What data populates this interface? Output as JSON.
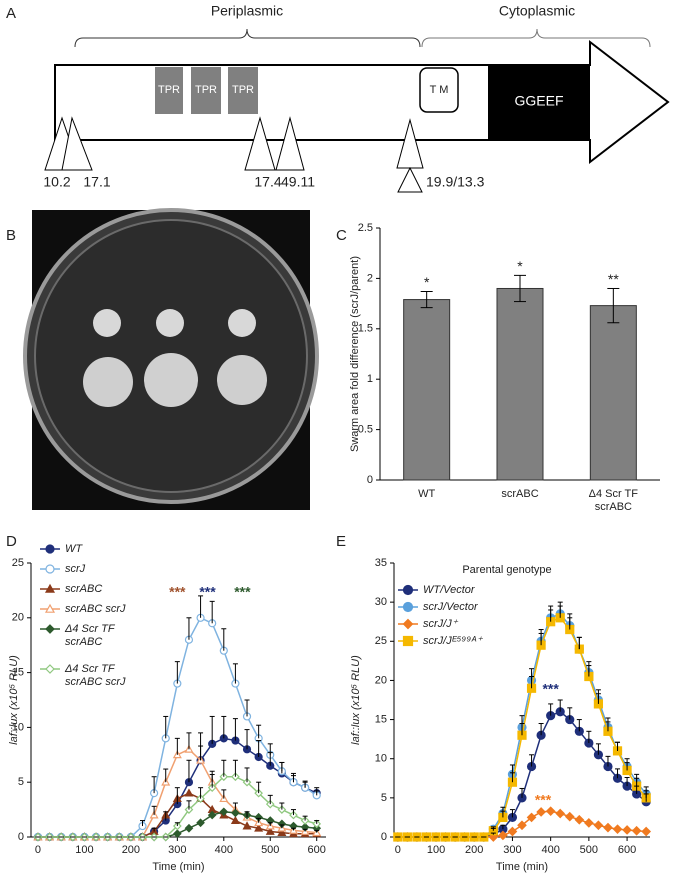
{
  "panel_labels": [
    "A",
    "B",
    "C",
    "D",
    "E"
  ],
  "diagram": {
    "regions": [
      "Periplasmic",
      "Cytoplasmic"
    ],
    "domains": [
      "TPR",
      "TPR",
      "TPR",
      "T M",
      "GGEEF"
    ],
    "insertions": [
      "10.2",
      "17.1",
      "17.4",
      "49.11",
      "19.9/13.3"
    ]
  },
  "chart_data": [
    {
      "type": "bar",
      "ylabel": "Swarm area fold difference (scrJ/parent)",
      "categories": [
        "WT",
        "scrABC",
        "Δ4 Scr TF\nscrABC"
      ],
      "values": [
        1.79,
        1.9,
        1.73
      ],
      "errors": [
        0.08,
        0.13,
        0.17
      ],
      "annotations": [
        "*",
        "*",
        "**"
      ],
      "color": "#808080",
      "ylim": [
        0,
        2.5
      ],
      "yticks": [
        0,
        0.5,
        1,
        1.5,
        2,
        2.5
      ]
    },
    {
      "type": "line",
      "xlabel": "Time (min)",
      "ylabel": "laf::lux (x10⁵ RLU)",
      "x": [
        0,
        25,
        50,
        75,
        100,
        125,
        150,
        175,
        200,
        225,
        250,
        275,
        300,
        325,
        350,
        375,
        400,
        425,
        450,
        475,
        500,
        525,
        550,
        575,
        600
      ],
      "xlim": [
        -15,
        620
      ],
      "xticks": [
        0,
        100,
        200,
        300,
        400,
        500,
        600
      ],
      "ylim": [
        0,
        25
      ],
      "yticks": [
        0,
        5,
        10,
        15,
        20,
        25
      ],
      "legend": "upper left",
      "series": [
        {
          "name": "WT",
          "color": "#1f2f7a",
          "marker": "circle",
          "values": [
            0,
            0,
            0,
            0,
            0,
            0,
            0,
            0,
            0,
            0,
            0.5,
            1.5,
            3,
            5,
            7,
            8.5,
            9,
            8.8,
            8,
            7.3,
            6.5,
            5.8,
            5,
            4.5,
            4
          ],
          "errors": [
            0,
            0,
            0,
            0,
            0,
            0,
            0,
            0,
            0,
            0,
            0.3,
            0.8,
            1.5,
            2,
            2.5,
            2.5,
            2,
            2,
            1.8,
            1.5,
            1.2,
            1,
            0.8,
            0.6,
            0.5
          ]
        },
        {
          "name": "scrJ",
          "color": "#7fb3e0",
          "marker": "circle-open",
          "values": [
            0,
            0,
            0,
            0,
            0,
            0,
            0,
            0,
            0,
            1,
            4,
            9,
            14,
            18,
            20,
            19.5,
            17,
            14,
            11,
            9,
            7.5,
            6,
            5,
            4.5,
            3.8
          ],
          "errors": [
            0,
            0,
            0,
            0,
            0,
            0,
            0,
            0,
            0,
            0.5,
            1.5,
            2,
            2,
            2,
            2,
            2,
            2,
            1.8,
            1.5,
            1.2,
            1,
            0.8,
            0.6,
            0.5,
            0.4
          ]
        },
        {
          "name": "scrABC",
          "color": "#8b3a1a",
          "marker": "triangle",
          "values": [
            0,
            0,
            0,
            0,
            0,
            0,
            0,
            0,
            0,
            0,
            0.5,
            2,
            3.5,
            4,
            3.5,
            2.5,
            2,
            1.5,
            1,
            0.8,
            0.5,
            0.4,
            0.3,
            0.3,
            0.3
          ]
        },
        {
          "name": "scrABC scrJ",
          "color": "#f0a070",
          "marker": "triangle-open",
          "values": [
            0,
            0,
            0,
            0,
            0,
            0,
            0,
            0,
            0,
            0,
            2,
            5,
            7.5,
            8,
            7,
            5,
            3.5,
            2.5,
            1.8,
            1.3,
            1,
            0.8,
            0.6,
            0.5,
            0.4
          ],
          "errors": [
            0,
            0,
            0,
            0,
            0,
            0,
            0,
            0,
            0,
            0,
            0.8,
            1.2,
            1.5,
            1.5,
            1.3,
            1,
            0.8,
            0.6,
            0.5,
            0.4,
            0.3,
            0.3,
            0.2,
            0.2,
            0.2
          ]
        },
        {
          "name": "Δ4 Scr TF\nscrABC",
          "color": "#2d5a2d",
          "marker": "diamond",
          "values": [
            0,
            0,
            0,
            0,
            0,
            0,
            0,
            0,
            0,
            0,
            0,
            0,
            0.3,
            0.8,
            1.3,
            2,
            2.3,
            2.2,
            2,
            1.8,
            1.5,
            1.2,
            1,
            0.9,
            0.8
          ]
        },
        {
          "name": "Δ4 Scr TF\nscrABC scrJ",
          "color": "#90c880",
          "marker": "diamond-open",
          "values": [
            0,
            0,
            0,
            0,
            0,
            0,
            0,
            0,
            0,
            0,
            0,
            0,
            1,
            2.5,
            3.5,
            4.5,
            5.5,
            5.5,
            5,
            4,
            3,
            2.5,
            2,
            1.5,
            1.2
          ],
          "errors": [
            0,
            0,
            0,
            0,
            0,
            0,
            0,
            0,
            0,
            0,
            0,
            0,
            0.3,
            0.8,
            1,
            1.2,
            1.5,
            1.5,
            1.3,
            1,
            0.8,
            0.6,
            0.5,
            0.4,
            0.3
          ]
        }
      ],
      "annotations": [
        {
          "text": "***",
          "color": "#a0522d"
        },
        {
          "text": "***",
          "color": "#1f2f7a"
        },
        {
          "text": "***",
          "color": "#2d5a2d"
        }
      ]
    },
    {
      "type": "line",
      "title": "Parental genotype",
      "xlabel": "Time (min)",
      "ylabel": "laf::lux (x10⁵ RLU)",
      "x": [
        0,
        25,
        50,
        75,
        100,
        125,
        150,
        175,
        200,
        225,
        250,
        275,
        300,
        325,
        350,
        375,
        400,
        425,
        450,
        475,
        500,
        525,
        550,
        575,
        600,
        625,
        650
      ],
      "xlim": [
        -10,
        660
      ],
      "xticks": [
        0,
        100,
        200,
        300,
        400,
        500,
        600
      ],
      "ylim": [
        0,
        35
      ],
      "yticks": [
        0,
        5,
        10,
        15,
        20,
        25,
        30,
        35
      ],
      "legend": "upper left",
      "series": [
        {
          "name": "WT/Vector",
          "color": "#1f2f7a",
          "marker": "circle",
          "values": [
            0,
            0,
            0,
            0,
            0,
            0,
            0,
            0,
            0,
            0,
            0.3,
            1,
            2.5,
            5,
            9,
            13,
            15.5,
            16,
            15,
            13.5,
            12,
            10.5,
            9,
            7.5,
            6.5,
            5.5,
            4.5
          ],
          "errors": [
            0,
            0,
            0,
            0,
            0,
            0,
            0,
            0,
            0,
            0,
            0.2,
            0.5,
            1,
            1.2,
            1.5,
            1.5,
            1.5,
            1.5,
            1.5,
            1.5,
            1.5,
            1.4,
            1.3,
            1.2,
            1.1,
            1,
            1
          ]
        },
        {
          "name": "scrJ/Vector",
          "color": "#5aa0dc",
          "marker": "circle",
          "values": [
            0,
            0,
            0,
            0,
            0,
            0,
            0,
            0,
            0,
            0,
            1,
            3,
            8,
            14,
            20,
            25,
            28,
            28.5,
            27,
            24,
            21,
            17.5,
            14,
            11,
            9,
            7,
            5.5
          ],
          "errors": [
            0,
            0,
            0,
            0,
            0,
            0,
            0,
            0,
            0,
            0,
            0.3,
            0.8,
            1.2,
            1.5,
            1.5,
            1.5,
            1.5,
            1.5,
            1.5,
            1.5,
            1.4,
            1.3,
            1.2,
            1.1,
            1,
            1,
            0.9
          ]
        },
        {
          "name": "scrJ/J⁺",
          "color": "#f07a20",
          "marker": "diamond",
          "values": [
            0,
            0,
            0,
            0,
            0,
            0,
            0,
            0,
            0,
            0,
            0,
            0.2,
            0.7,
            1.5,
            2.5,
            3.2,
            3.3,
            3,
            2.6,
            2.2,
            1.8,
            1.5,
            1.2,
            1,
            0.9,
            0.8,
            0.7
          ]
        },
        {
          "name": "scrJ/Jᴱ⁵⁹⁹ᴬ⁺",
          "color": "#f5b800",
          "marker": "square",
          "values": [
            0,
            0,
            0,
            0,
            0,
            0,
            0,
            0,
            0,
            0,
            0.8,
            2.5,
            7,
            13,
            19,
            24.5,
            27.5,
            28,
            26.5,
            24,
            20.5,
            17,
            13.5,
            11,
            8.5,
            6.5,
            5
          ],
          "errors": [
            0,
            0,
            0,
            0,
            0,
            0,
            0,
            0,
            0,
            0,
            0.3,
            0.8,
            1.2,
            1.5,
            1.5,
            1.5,
            1.5,
            1.5,
            1.5,
            1.5,
            1.4,
            1.3,
            1.2,
            1.1,
            1,
            1,
            0.9
          ]
        }
      ],
      "annotations": [
        {
          "text": "***",
          "color": "#1f2f7a"
        },
        {
          "text": "***",
          "color": "#f07a20"
        }
      ]
    }
  ]
}
